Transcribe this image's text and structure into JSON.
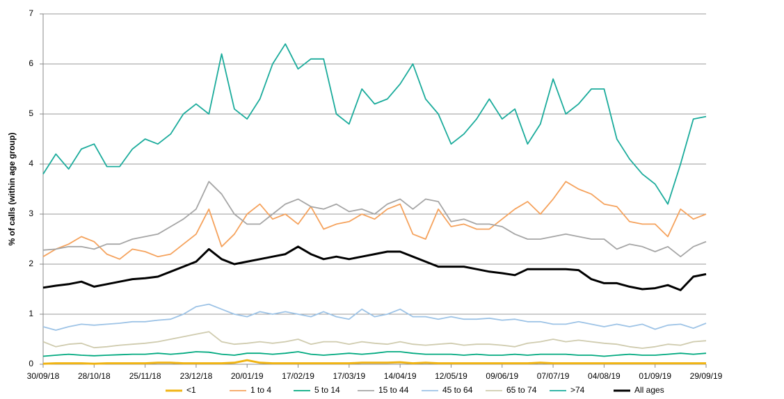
{
  "chart_data": {
    "type": "line",
    "y_label": "% of calls (within age group)",
    "x": [
      "2018-09-30",
      "2018-10-07",
      "2018-10-14",
      "2018-10-21",
      "2018-10-28",
      "2018-11-04",
      "2018-11-11",
      "2018-11-18",
      "2018-11-25",
      "2018-12-02",
      "2018-12-09",
      "2018-12-16",
      "2018-12-23",
      "2018-12-30",
      "2019-01-06",
      "2019-01-13",
      "2019-01-20",
      "2019-01-27",
      "2019-02-03",
      "2019-02-10",
      "2019-02-17",
      "2019-02-24",
      "2019-03-03",
      "2019-03-10",
      "2019-03-17",
      "2019-03-24",
      "2019-03-31",
      "2019-04-07",
      "2019-04-14",
      "2019-04-21",
      "2019-04-28",
      "2019-05-05",
      "2019-05-12",
      "2019-05-19",
      "2019-05-26",
      "2019-06-02",
      "2019-06-09",
      "2019-06-16",
      "2019-06-23",
      "2019-06-30",
      "2019-07-07",
      "2019-07-14",
      "2019-07-21",
      "2019-07-28",
      "2019-08-04",
      "2019-08-11",
      "2019-08-18",
      "2019-08-25",
      "2019-09-01",
      "2019-09-08",
      "2019-09-15",
      "2019-09-22",
      "2019-09-29"
    ],
    "xlim": [
      "2018-09-30",
      "2019-09-29"
    ],
    "xticks": [
      {
        "value": "2018-09-30",
        "label": "30/09/18"
      },
      {
        "value": "2018-10-28",
        "label": "28/10/18"
      },
      {
        "value": "2018-11-25",
        "label": "25/11/18"
      },
      {
        "value": "2018-12-23",
        "label": "23/12/18"
      },
      {
        "value": "2019-01-20",
        "label": "20/01/19"
      },
      {
        "value": "2019-02-17",
        "label": "17/02/19"
      },
      {
        "value": "2019-03-17",
        "label": "17/03/19"
      },
      {
        "value": "2019-04-14",
        "label": "14/04/19"
      },
      {
        "value": "2019-05-12",
        "label": "12/05/19"
      },
      {
        "value": "2019-06-09",
        "label": "09/06/19"
      },
      {
        "value": "2019-07-07",
        "label": "07/07/19"
      },
      {
        "value": "2019-08-04",
        "label": "04/08/19"
      },
      {
        "value": "2019-09-01",
        "label": "01/09/19"
      },
      {
        "value": "2019-09-29",
        "label": "29/09/19"
      }
    ],
    "ylim": [
      0,
      7
    ],
    "yticks": [
      0,
      1,
      2,
      3,
      4,
      5,
      6,
      7
    ],
    "grid": true,
    "legend": "bottom",
    "series": [
      {
        "name": "<1",
        "color": "#f0b414",
        "values": [
          0.01,
          0.02,
          0.02,
          0.02,
          0.01,
          0.02,
          0.02,
          0.02,
          0.02,
          0.03,
          0.03,
          0.02,
          0.02,
          0.02,
          0.02,
          0.03,
          0.08,
          0.03,
          0.02,
          0.02,
          0.02,
          0.02,
          0.02,
          0.02,
          0.02,
          0.03,
          0.03,
          0.03,
          0.04,
          0.02,
          0.03,
          0.02,
          0.02,
          0.02,
          0.02,
          0.02,
          0.02,
          0.02,
          0.02,
          0.03,
          0.02,
          0.02,
          0.02,
          0.02,
          0.02,
          0.02,
          0.02,
          0.02,
          0.02,
          0.02,
          0.02,
          0.02,
          0.02
        ]
      },
      {
        "name": "1 to 4",
        "color": "#f5a25c",
        "values": [
          2.15,
          2.3,
          2.4,
          2.55,
          2.45,
          2.2,
          2.1,
          2.3,
          2.25,
          2.15,
          2.2,
          2.4,
          2.6,
          3.1,
          2.35,
          2.6,
          3.0,
          3.2,
          2.9,
          3.0,
          2.8,
          3.15,
          2.7,
          2.8,
          2.85,
          3.0,
          2.9,
          3.1,
          3.2,
          2.6,
          2.5,
          3.1,
          2.75,
          2.8,
          2.7,
          2.7,
          2.9,
          3.1,
          3.25,
          3.0,
          3.3,
          3.65,
          3.5,
          3.4,
          3.2,
          3.15,
          2.85,
          2.8,
          2.8,
          2.55,
          3.1,
          2.9,
          3.0
        ]
      },
      {
        "name": "5 to 14",
        "color": "#00a97f",
        "values": [
          0.16,
          0.18,
          0.2,
          0.18,
          0.17,
          0.18,
          0.19,
          0.2,
          0.2,
          0.22,
          0.2,
          0.22,
          0.25,
          0.24,
          0.2,
          0.18,
          0.22,
          0.22,
          0.2,
          0.22,
          0.25,
          0.2,
          0.18,
          0.2,
          0.22,
          0.2,
          0.22,
          0.25,
          0.25,
          0.22,
          0.2,
          0.2,
          0.2,
          0.18,
          0.2,
          0.18,
          0.18,
          0.2,
          0.18,
          0.2,
          0.2,
          0.2,
          0.18,
          0.18,
          0.16,
          0.18,
          0.2,
          0.18,
          0.18,
          0.2,
          0.22,
          0.2,
          0.22
        ]
      },
      {
        "name": "15 to 44",
        "color": "#a5a5a5",
        "values": [
          2.28,
          2.3,
          2.35,
          2.35,
          2.3,
          2.4,
          2.4,
          2.5,
          2.55,
          2.6,
          2.75,
          2.9,
          3.1,
          3.65,
          3.4,
          3.0,
          2.8,
          2.8,
          3.0,
          3.2,
          3.3,
          3.15,
          3.1,
          3.2,
          3.05,
          3.1,
          3.0,
          3.2,
          3.3,
          3.1,
          3.3,
          3.25,
          2.85,
          2.9,
          2.8,
          2.8,
          2.75,
          2.6,
          2.5,
          2.5,
          2.55,
          2.6,
          2.55,
          2.5,
          2.5,
          2.3,
          2.4,
          2.35,
          2.25,
          2.35,
          2.15,
          2.35,
          2.45
        ]
      },
      {
        "name": "45 to 64",
        "color": "#9dc3e6",
        "values": [
          0.75,
          0.68,
          0.75,
          0.8,
          0.78,
          0.8,
          0.82,
          0.85,
          0.85,
          0.88,
          0.9,
          1.0,
          1.15,
          1.2,
          1.1,
          1.0,
          0.95,
          1.05,
          1.0,
          1.05,
          1.0,
          0.95,
          1.05,
          0.95,
          0.9,
          1.1,
          0.95,
          1.0,
          1.1,
          0.95,
          0.95,
          0.9,
          0.95,
          0.9,
          0.9,
          0.92,
          0.88,
          0.9,
          0.85,
          0.85,
          0.8,
          0.8,
          0.85,
          0.8,
          0.75,
          0.8,
          0.75,
          0.8,
          0.7,
          0.78,
          0.8,
          0.72,
          0.82
        ]
      },
      {
        "name": "65 to 74",
        "color": "#cfcbae",
        "values": [
          0.45,
          0.35,
          0.4,
          0.42,
          0.33,
          0.35,
          0.38,
          0.4,
          0.42,
          0.45,
          0.5,
          0.55,
          0.6,
          0.65,
          0.45,
          0.4,
          0.42,
          0.45,
          0.42,
          0.45,
          0.5,
          0.4,
          0.45,
          0.45,
          0.4,
          0.45,
          0.42,
          0.4,
          0.45,
          0.4,
          0.38,
          0.4,
          0.42,
          0.38,
          0.4,
          0.4,
          0.38,
          0.35,
          0.42,
          0.45,
          0.5,
          0.45,
          0.48,
          0.45,
          0.42,
          0.4,
          0.35,
          0.32,
          0.35,
          0.4,
          0.38,
          0.45,
          0.47
        ]
      },
      {
        "name": ">74",
        "color": "#1aab9b",
        "values": [
          3.8,
          4.2,
          3.9,
          4.3,
          4.4,
          3.95,
          3.95,
          4.3,
          4.5,
          4.4,
          4.6,
          5.0,
          5.2,
          5.0,
          6.2,
          5.1,
          4.9,
          5.3,
          6.0,
          6.4,
          5.9,
          6.1,
          6.1,
          5.0,
          4.8,
          5.5,
          5.2,
          5.3,
          5.6,
          6.0,
          5.3,
          5.0,
          4.4,
          4.6,
          4.9,
          5.3,
          4.9,
          5.1,
          4.4,
          4.8,
          5.7,
          5.0,
          5.2,
          5.5,
          5.5,
          4.5,
          4.1,
          3.8,
          3.6,
          3.2,
          4.0,
          4.9,
          4.95
        ]
      },
      {
        "name": "All ages",
        "color": "#000000",
        "values": [
          1.53,
          1.57,
          1.6,
          1.65,
          1.55,
          1.6,
          1.65,
          1.7,
          1.72,
          1.75,
          1.85,
          1.95,
          2.05,
          2.3,
          2.1,
          2.0,
          2.05,
          2.1,
          2.15,
          2.2,
          2.35,
          2.2,
          2.1,
          2.15,
          2.1,
          2.15,
          2.2,
          2.25,
          2.25,
          2.15,
          2.05,
          1.95,
          1.95,
          1.95,
          1.9,
          1.85,
          1.82,
          1.78,
          1.9,
          1.9,
          1.9,
          1.9,
          1.88,
          1.7,
          1.62,
          1.62,
          1.55,
          1.5,
          1.52,
          1.58,
          1.48,
          1.75,
          1.8
        ]
      }
    ]
  }
}
